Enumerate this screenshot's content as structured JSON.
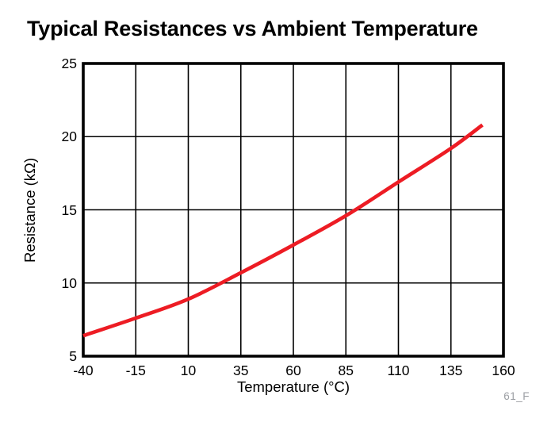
{
  "page": {
    "background": "#ffffff"
  },
  "header": {
    "title": "Typical Resistances vs Ambient Temperature"
  },
  "figure_label": "61_F",
  "colors": {
    "curve": "#ed1c24",
    "axis": "#000000",
    "grid": "#000000",
    "text": "#000000",
    "figure_label": "#9b9ea3"
  },
  "chart_data": {
    "type": "line",
    "title": "Typical Resistances vs Ambient Temperature",
    "xlabel": "Temperature (°C)",
    "ylabel": "Resistance (kΩ)",
    "xlim": [
      -40,
      160
    ],
    "ylim": [
      5,
      25
    ],
    "x_ticks": [
      -40,
      -15,
      10,
      35,
      60,
      85,
      110,
      135,
      160
    ],
    "y_ticks": [
      5,
      10,
      15,
      20,
      25
    ],
    "grid": true,
    "legend": false,
    "series": [
      {
        "color": "#ed1c24",
        "x": [
          -40,
          -15,
          10,
          35,
          60,
          85,
          110,
          135,
          150
        ],
        "y": [
          6.4,
          7.6,
          8.9,
          10.7,
          12.6,
          14.6,
          16.9,
          19.2,
          20.8
        ]
      }
    ]
  }
}
